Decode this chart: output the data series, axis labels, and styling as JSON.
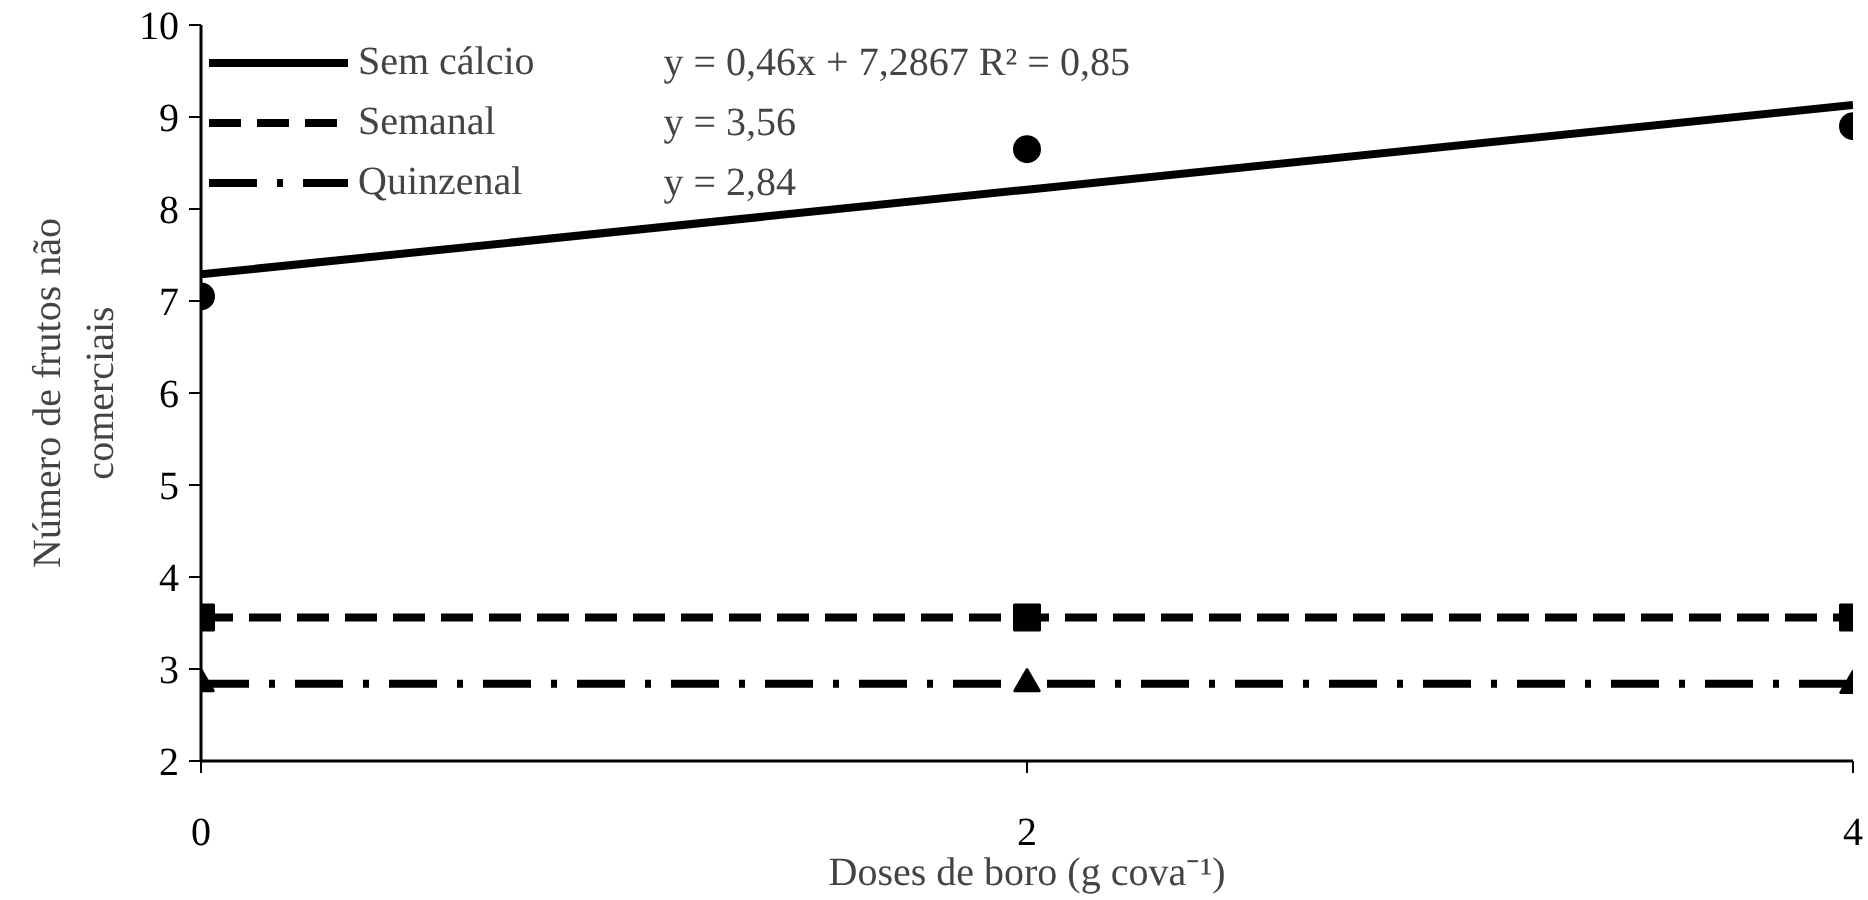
{
  "chart_data": {
    "type": "scatter",
    "xlabel": "Doses de boro (g cova⁻¹)",
    "ylabel": "Número de frutos não\ncomerciais",
    "x": [
      0,
      2,
      4
    ],
    "xlim": [
      0,
      4
    ],
    "xticks": [
      0,
      2,
      4
    ],
    "ylim": [
      2,
      10
    ],
    "yticks": [
      2,
      3,
      4,
      5,
      6,
      7,
      8,
      9,
      10
    ],
    "grid": false,
    "legend": "top left",
    "series": [
      {
        "marker": "circle",
        "color": "#000000",
        "values": [
          7.05,
          8.65,
          8.9
        ]
      },
      {
        "marker": "square",
        "color": "#000000",
        "values": [
          3.56,
          3.56,
          3.56
        ]
      },
      {
        "marker": "triangle",
        "color": "#000000",
        "values": [
          2.84,
          2.84,
          2.82
        ]
      },
      {
        "type": "line",
        "name": "Sem cálcio",
        "line_style": "solid",
        "color": "#000000",
        "values": [
          7.29,
          8.21,
          9.13
        ]
      },
      {
        "type": "line",
        "name": "Semanal",
        "line_style": "dashed",
        "color": "#000000",
        "values": [
          3.56,
          3.56,
          3.56
        ]
      },
      {
        "type": "line",
        "name": "Quinzenal",
        "line_style": "dashdot",
        "color": "#000000",
        "values": [
          2.84,
          2.84,
          2.84
        ]
      }
    ],
    "annotations": [
      "y = 0,46x + 7,2867 R² = 0,85",
      "y = 3,56",
      "y = 2,84"
    ]
  }
}
